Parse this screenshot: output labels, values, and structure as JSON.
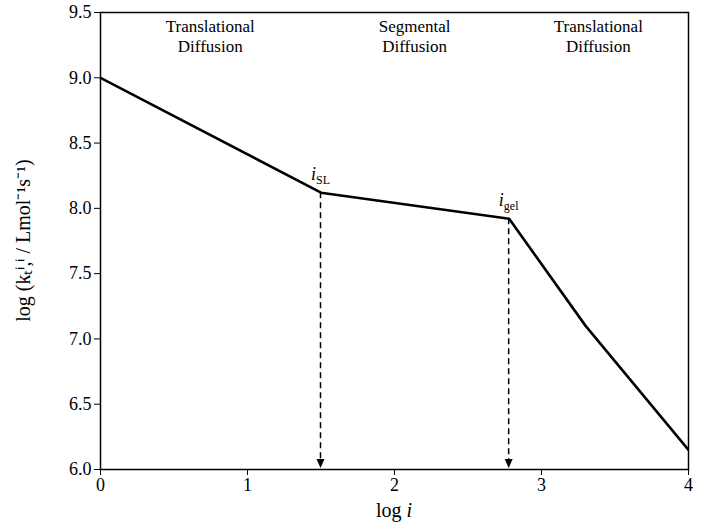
{
  "chart_data": {
    "type": "line",
    "x_label": "log i",
    "y_label": "log (kₜⁱ,ⁱ / Lmol⁻¹s⁻¹)",
    "x": [
      0,
      1.5,
      2.78,
      3.3,
      4
    ],
    "values": [
      9.0,
      8.12,
      7.92,
      7.1,
      6.15
    ],
    "color": "#000000",
    "xlim": [
      0,
      4
    ],
    "ylim": [
      6,
      9.5
    ],
    "xticks": [
      0,
      1,
      2,
      3,
      4
    ],
    "yticks": [
      {
        "value": 6,
        "label": "6.0"
      },
      {
        "value": 6.5,
        "label": "6.5"
      },
      {
        "value": 7,
        "label": "7.0"
      },
      {
        "value": 7.5,
        "label": "7.5"
      },
      {
        "value": 8,
        "label": "8.0"
      },
      {
        "value": 8.5,
        "label": "8.5"
      },
      {
        "value": 9,
        "label": "9.0"
      },
      {
        "value": 9.5,
        "label": "9.5"
      }
    ],
    "regions": [
      {
        "label": "Translational Diffusion",
        "from": 0,
        "to": 1.5
      },
      {
        "label": "Segmental Diffusion",
        "from": 1.5,
        "to": 2.78
      },
      {
        "label": "Translational Diffusion",
        "from": 2.78,
        "to": 4
      }
    ],
    "markers": [
      {
        "x": 1.5,
        "label": "i",
        "sub": "SL"
      },
      {
        "x": 2.78,
        "label": "i",
        "sub": "gel"
      }
    ]
  }
}
